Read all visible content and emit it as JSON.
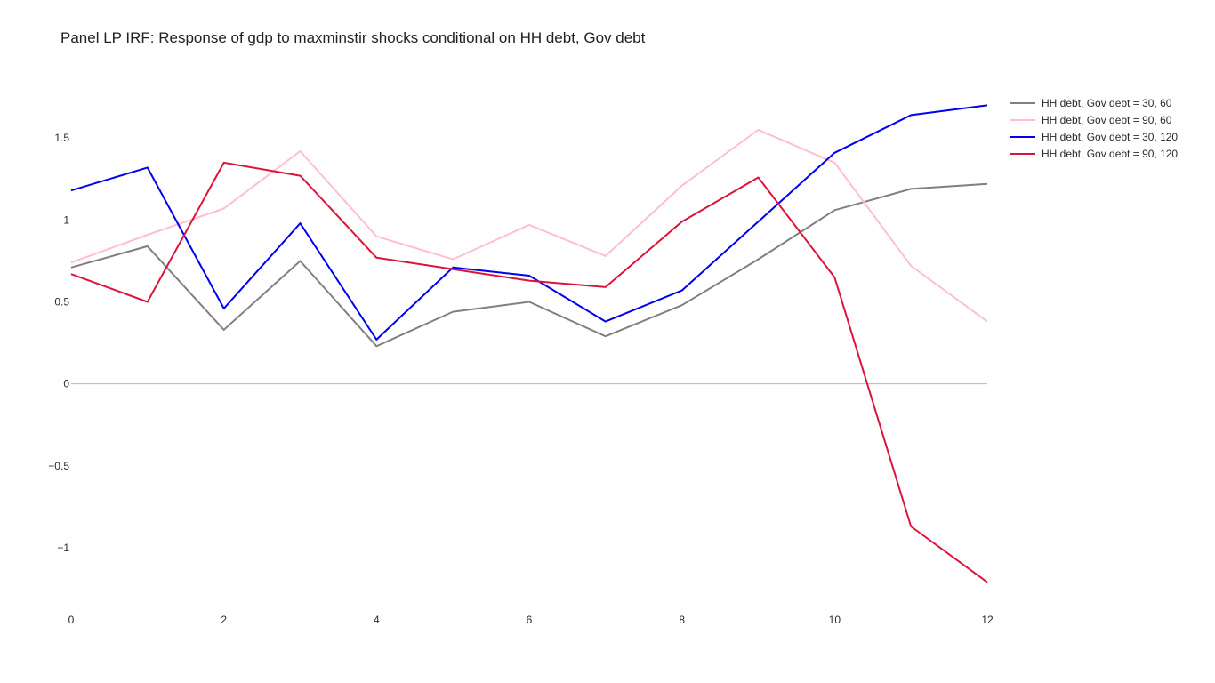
{
  "chart_data": {
    "type": "line",
    "title": "Panel LP IRF: Response of gdp to maxminstir shocks conditional on HH debt, Gov debt",
    "xlabel": "",
    "ylabel": "",
    "x": [
      0,
      1,
      2,
      3,
      4,
      5,
      6,
      7,
      8,
      9,
      10,
      11,
      12
    ],
    "xlim": [
      0,
      12
    ],
    "ylim": [
      -1.38,
      1.93
    ],
    "x_ticks": [
      0,
      2,
      4,
      6,
      8,
      10,
      12
    ],
    "x_tick_labels": [
      "0",
      "2",
      "4",
      "6",
      "8",
      "10",
      "12"
    ],
    "y_ticks": [
      -1,
      -0.5,
      0,
      0.5,
      1,
      1.5
    ],
    "y_tick_labels": [
      "−1",
      "−0.5",
      "0",
      "0.5",
      "1",
      "1.5"
    ],
    "zero_line": true,
    "grid": false,
    "legend_position": "top-right",
    "series": [
      {
        "name": "HH debt, Gov debt = 30, 60",
        "color": "#808080",
        "values": [
          0.71,
          0.84,
          0.33,
          0.75,
          0.23,
          0.44,
          0.5,
          0.29,
          0.48,
          0.76,
          1.06,
          1.19,
          1.22
        ]
      },
      {
        "name": "HH debt, Gov debt = 90, 60",
        "color": "#ffc0cb",
        "values": [
          0.74,
          0.91,
          1.07,
          1.42,
          0.9,
          0.76,
          0.97,
          0.78,
          1.21,
          1.55,
          1.35,
          0.72,
          0.38
        ]
      },
      {
        "name": "HH debt, Gov debt = 30, 120",
        "color": "#0000ee",
        "values": [
          1.18,
          1.32,
          0.46,
          0.98,
          0.27,
          0.71,
          0.66,
          0.38,
          0.57,
          0.99,
          1.41,
          1.64,
          1.7
        ]
      },
      {
        "name": "HH debt, Gov debt = 90, 120",
        "color": "#dc143c",
        "values": [
          0.67,
          0.5,
          1.35,
          1.27,
          0.77,
          0.7,
          0.63,
          0.59,
          0.99,
          1.26,
          0.65,
          -0.87,
          -1.21
        ]
      }
    ]
  }
}
